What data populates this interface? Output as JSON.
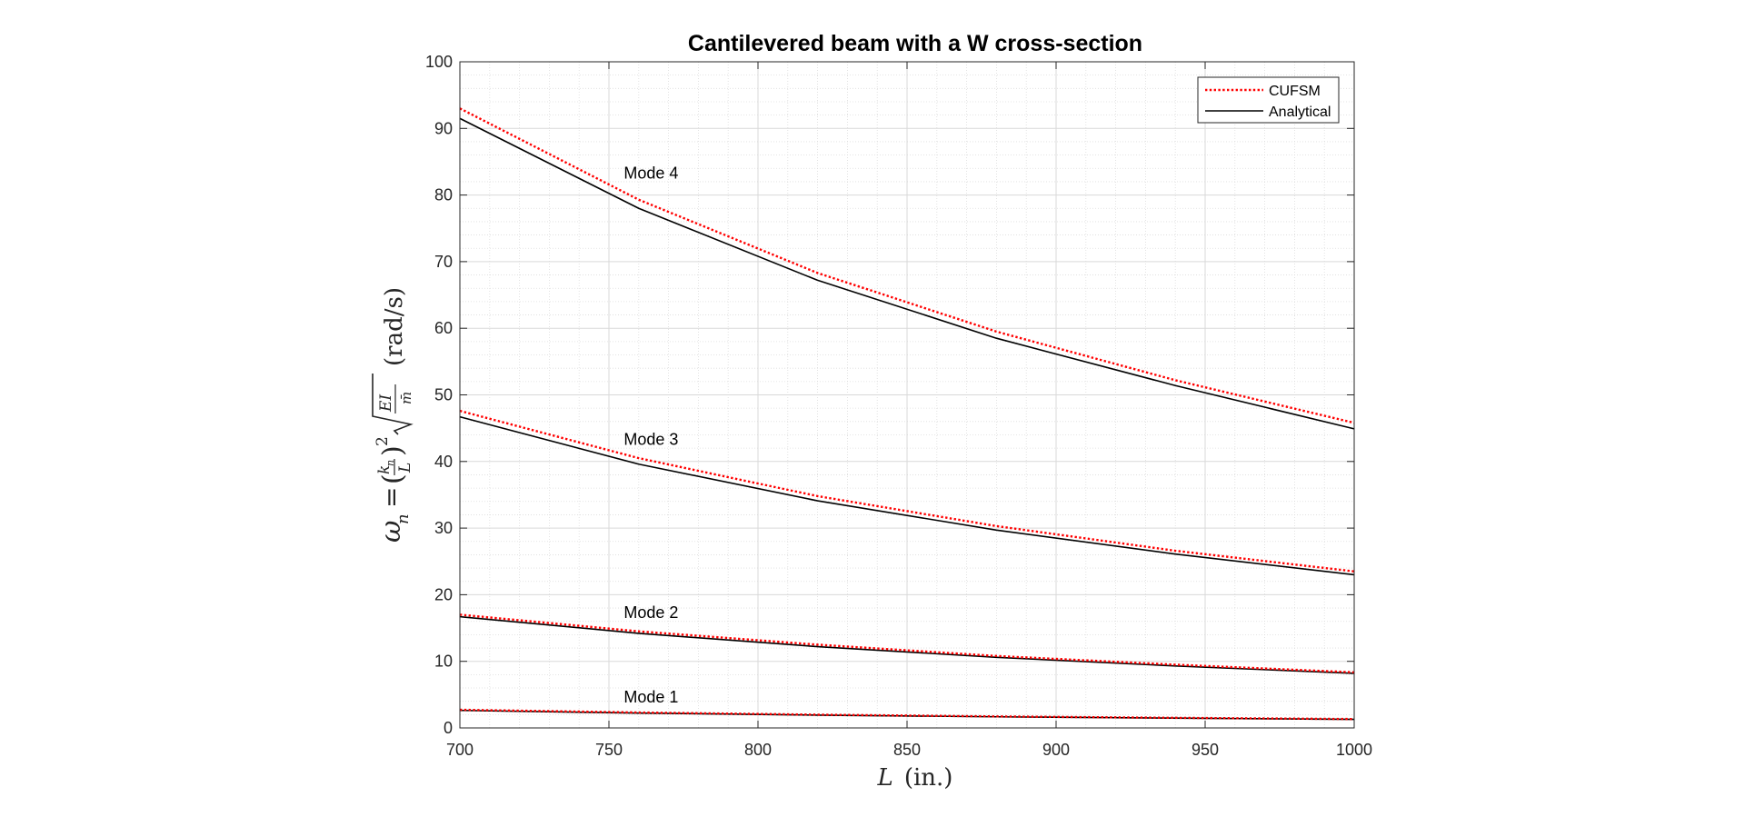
{
  "chart_data": {
    "type": "line",
    "title": "Cantilevered beam with a W cross-section",
    "xlabel": {
      "var": "L",
      "unit": "(in.)"
    },
    "ylabel": {
      "omega": "ω",
      "sub_n": "n",
      "equals": "=",
      "k": "k",
      "k_sub": "n",
      "L": "L",
      "power": "2",
      "EI": "EI",
      "mbar": "m̄",
      "unit": "(rad/s)"
    },
    "xlim": [
      700,
      1000
    ],
    "ylim": [
      0,
      100
    ],
    "xticks": [
      700,
      750,
      800,
      850,
      900,
      950,
      1000
    ],
    "yticks": [
      0,
      10,
      20,
      30,
      40,
      50,
      60,
      70,
      80,
      90,
      100
    ],
    "x_minor_step": 10,
    "y_minor_step": 2,
    "grid": true,
    "legend_position": "top-right",
    "legend": [
      {
        "name": "CUFSM",
        "style": "dotted",
        "color": "#ff0000"
      },
      {
        "name": "Analytical",
        "style": "solid",
        "color": "#000000"
      }
    ],
    "series": [
      {
        "name": "CUFSM",
        "mode": "Mode 1",
        "x": [
          700,
          760,
          820,
          880,
          940,
          1000
        ],
        "y": [
          2.73,
          2.32,
          1.99,
          1.73,
          1.52,
          1.34
        ]
      },
      {
        "name": "Analytical",
        "mode": "Mode 1",
        "x": [
          700,
          760,
          820,
          880,
          940,
          1000
        ],
        "y": [
          2.63,
          2.23,
          1.92,
          1.67,
          1.47,
          1.29
        ]
      },
      {
        "name": "CUFSM",
        "mode": "Mode 2",
        "x": [
          700,
          760,
          820,
          880,
          940,
          1000
        ],
        "y": [
          17.0,
          14.5,
          12.5,
          10.8,
          9.5,
          8.35
        ]
      },
      {
        "name": "Analytical",
        "mode": "Mode 2",
        "x": [
          700,
          760,
          820,
          880,
          940,
          1000
        ],
        "y": [
          16.7,
          14.2,
          12.2,
          10.6,
          9.3,
          8.2
        ]
      },
      {
        "name": "CUFSM",
        "mode": "Mode 3",
        "x": [
          700,
          760,
          820,
          880,
          940,
          1000
        ],
        "y": [
          47.6,
          40.5,
          34.8,
          30.3,
          26.6,
          23.5
        ]
      },
      {
        "name": "Analytical",
        "mode": "Mode 3",
        "x": [
          700,
          760,
          820,
          880,
          940,
          1000
        ],
        "y": [
          46.7,
          39.6,
          34.1,
          29.7,
          26.1,
          23.0
        ]
      },
      {
        "name": "CUFSM",
        "mode": "Mode 4",
        "x": [
          700,
          760,
          820,
          880,
          940,
          1000
        ],
        "y": [
          93.0,
          79.3,
          68.3,
          59.5,
          52.2,
          45.8
        ]
      },
      {
        "name": "Analytical",
        "mode": "Mode 4",
        "x": [
          700,
          760,
          820,
          880,
          940,
          1000
        ],
        "y": [
          91.5,
          78.0,
          67.2,
          58.5,
          51.4,
          44.9
        ]
      }
    ],
    "annotations": [
      {
        "text": "Mode 1",
        "x": 755,
        "y": 3.8
      },
      {
        "text": "Mode 2",
        "x": 755,
        "y": 16.5
      },
      {
        "text": "Mode 3",
        "x": 755,
        "y": 42.5
      },
      {
        "text": "Mode 4",
        "x": 755,
        "y": 82.5
      }
    ]
  }
}
